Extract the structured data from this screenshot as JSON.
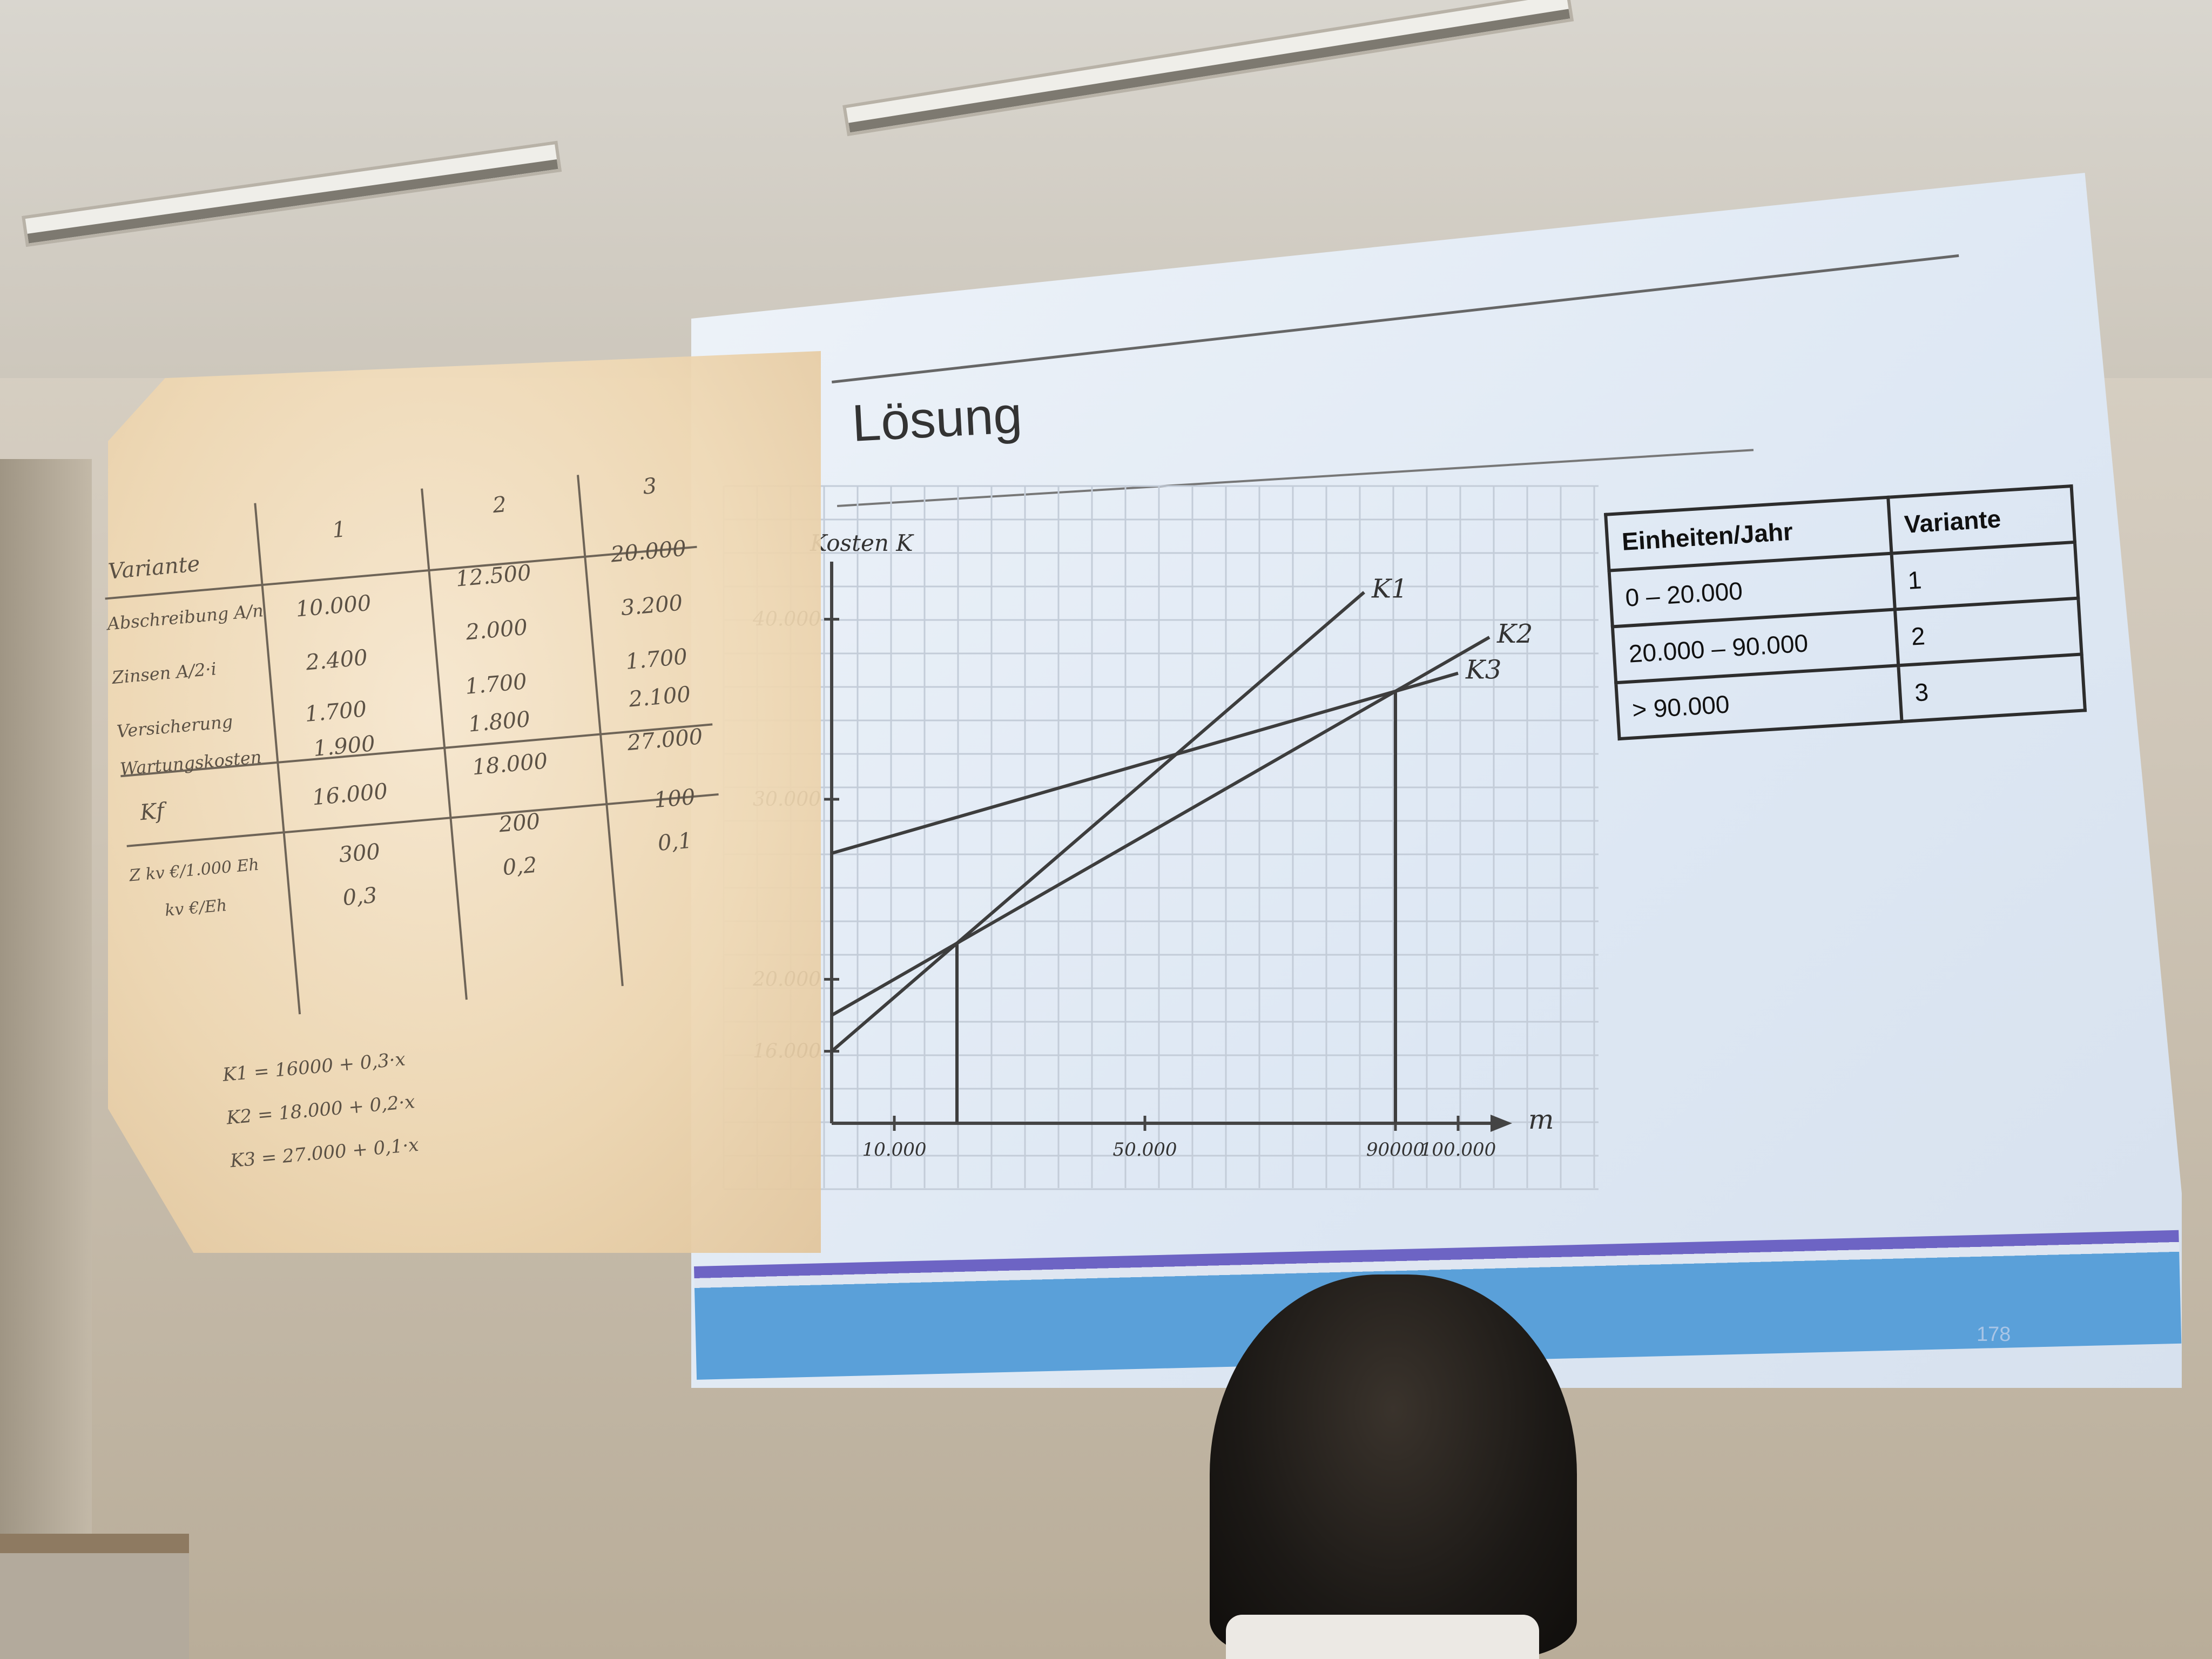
{
  "slide": {
    "title": "Lösung",
    "page_number": "178"
  },
  "overhead": {
    "header": [
      "Variante",
      "1",
      "2",
      "3"
    ],
    "rows": [
      {
        "label": "Abschreibung A/n",
        "values": [
          "10.000",
          "12.500",
          "20.000"
        ]
      },
      {
        "label": "Zinsen A/2·i",
        "values": [
          "2.400",
          "2.000",
          "3.200"
        ]
      },
      {
        "label": "Versicherung",
        "values": [
          "1.700",
          "1.700",
          "1.700"
        ]
      },
      {
        "label": "Wartungskosten",
        "values": [
          "1.900",
          "1.800",
          "2.100"
        ]
      }
    ],
    "kf": {
      "label": "Kf",
      "values": [
        "16.000",
        "18.000",
        "27.000"
      ]
    },
    "kv": {
      "label": "Z kv €/1.000 Eh",
      "label2": "kv €/Eh",
      "values": [
        "300",
        "200",
        "100"
      ],
      "values2": [
        "0,3",
        "0,2",
        "0,1"
      ]
    },
    "formulas": [
      "K1 = 16000 + 0,3·x",
      "K2 = 18.000 + 0,2·x",
      "K3 = 27.000 + 0,1·x"
    ]
  },
  "results_table": {
    "headers": [
      "Einheiten/Jahr",
      "Variante"
    ],
    "rows": [
      [
        "0 – 20.000",
        "1"
      ],
      [
        "20.000 – 90.000",
        "2"
      ],
      [
        "> 90.000",
        "3"
      ]
    ]
  },
  "chart_data": {
    "type": "line",
    "ylabel": "Kosten K",
    "xlabel": "m",
    "xlim": [
      0,
      100000
    ],
    "ylim": [
      12000,
      42000
    ],
    "x_ticks": [
      "10.000",
      "50.000",
      "90000",
      "100.000"
    ],
    "x_tick_values": [
      10000,
      50000,
      90000,
      100000
    ],
    "y_ticks": [
      "16.000",
      "20.000",
      "30.000",
      "40.000"
    ],
    "y_tick_values": [
      16000,
      20000,
      30000,
      40000
    ],
    "series": [
      {
        "name": "K1",
        "x": [
          0,
          85000
        ],
        "y": [
          16000,
          41500
        ]
      },
      {
        "name": "K2",
        "x": [
          0,
          105000
        ],
        "y": [
          18000,
          39000
        ]
      },
      {
        "name": "K3",
        "x": [
          0,
          100000
        ],
        "y": [
          27000,
          37000
        ]
      }
    ],
    "markers": [
      20000,
      90000
    ],
    "grid": true
  },
  "colors": {
    "slide_footer": "#5aa0d9",
    "slide_stripe": "#6d64c4",
    "ink": "#5b5145"
  }
}
